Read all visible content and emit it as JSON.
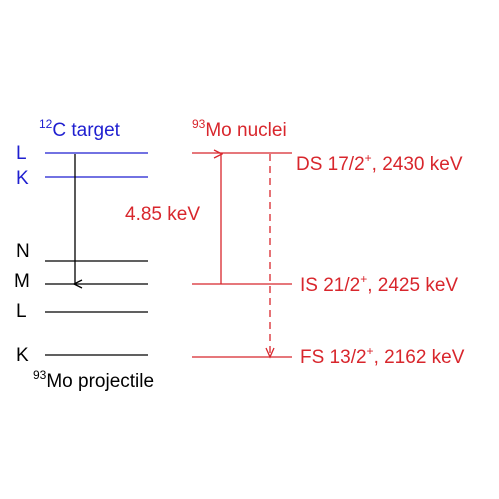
{
  "carbon": {
    "title_sup": "12",
    "title_main": "C target",
    "level_labels": [
      "L",
      "K"
    ],
    "color": "#1f1fd0"
  },
  "projectile": {
    "level_labels": [
      "N",
      "M",
      "L",
      "K"
    ],
    "caption_sup": "93",
    "caption_main": "Mo projectile",
    "color": "#000000"
  },
  "nuclei": {
    "title_sup": "93",
    "title_main": "Mo nuclei",
    "color": "#d8262c",
    "energy_gap": "4.85 keV",
    "states": [
      {
        "prefix": "DS 17/2",
        "parity": "+",
        "suffix": ", 2430 keV"
      },
      {
        "prefix": "IS 21/2",
        "parity": "+",
        "suffix": ", 2425 keV"
      },
      {
        "prefix": "FS 13/2",
        "parity": "+",
        "suffix": ", 2162 keV"
      }
    ]
  }
}
